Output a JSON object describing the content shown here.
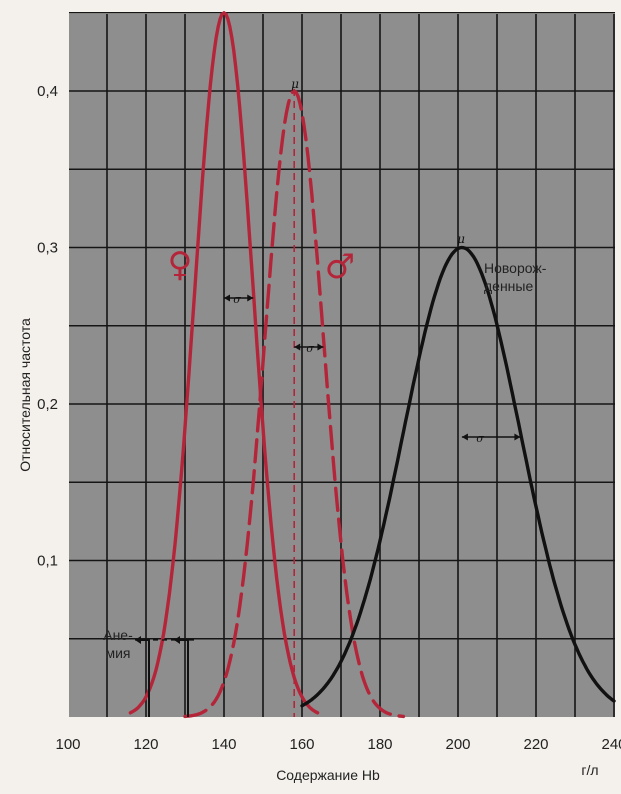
{
  "chart_data": {
    "type": "line",
    "xlabel": "Содержание Hb",
    "xunit": "г/л",
    "ylabel": "Относительная частота",
    "xlim": [
      100,
      240
    ],
    "ylim": [
      0,
      0.45
    ],
    "x_ticks": [
      "100",
      "120",
      "140",
      "160",
      "180",
      "200",
      "220",
      "240"
    ],
    "y_ticks": [
      "0,1",
      "0,2",
      "0,3",
      "0,4"
    ],
    "grid": true,
    "series": [
      {
        "name": "♀",
        "style": "solid",
        "color": "#b5253a",
        "mean": 140,
        "sd": 7.5,
        "peak": 0.45,
        "range": [
          116,
          164
        ]
      },
      {
        "name": "♂",
        "style": "dashed",
        "color": "#b5253a",
        "mean": 158,
        "sd": 7.5,
        "peak": 0.4,
        "range": [
          130,
          186
        ]
      },
      {
        "name": "Новорожденные",
        "style": "solid",
        "color": "#111111",
        "mean": 201,
        "sd": 15,
        "peak": 0.3,
        "range": [
          160,
          240
        ]
      }
    ],
    "annotations": {
      "anemia_line1": "Ане-",
      "anemia_line2": "мия",
      "newborn_line1": "Новорож-",
      "newborn_line2": "денные",
      "mu": "μ",
      "sigma": "σ",
      "female_symbol": "♀",
      "male_symbol": "♂"
    },
    "colors": {
      "plot_bg": "#8e8e8e",
      "grid": "#151515",
      "red": "#b5253a",
      "black": "#111111"
    }
  }
}
